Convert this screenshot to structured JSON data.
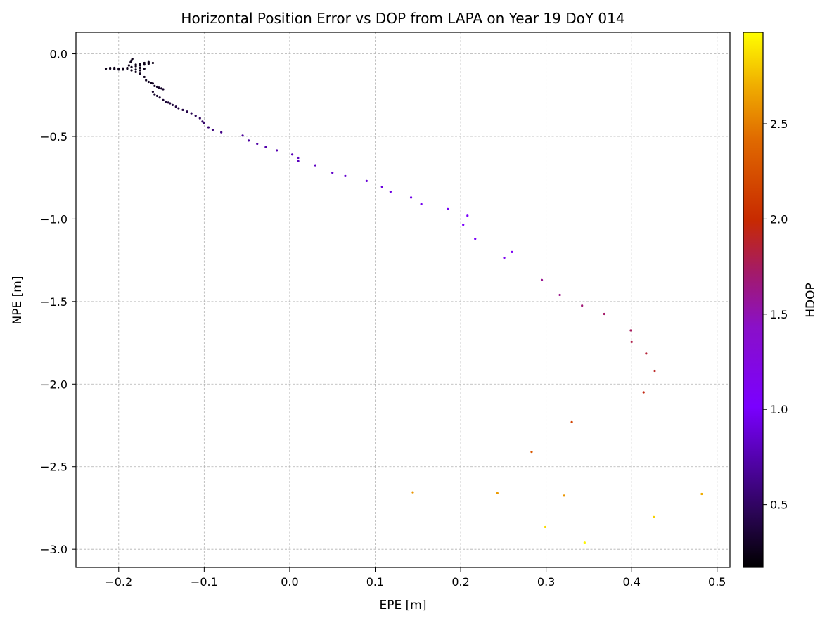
{
  "chart_data": {
    "type": "scatter",
    "title": "Horizontal Position Error vs DOP from LAPA on Year 19 DoY 014",
    "xlabel": "EPE [m]",
    "ylabel": "NPE [m]",
    "xlim": [
      -0.25,
      0.515
    ],
    "ylim": [
      -3.11,
      0.13
    ],
    "xticks": [
      -0.2,
      -0.1,
      0.0,
      0.1,
      0.2,
      0.3,
      0.4,
      0.5
    ],
    "xtick_labels": [
      "−0.2",
      "−0.1",
      "0.0",
      "0.1",
      "0.2",
      "0.3",
      "0.4",
      "0.5"
    ],
    "yticks": [
      0.0,
      -0.5,
      -1.0,
      -1.5,
      -2.0,
      -2.5,
      -3.0
    ],
    "ytick_labels": [
      "0.0",
      "−0.5",
      "−1.0",
      "−1.5",
      "−2.0",
      "−2.5",
      "−3.0"
    ],
    "grid": true,
    "colormap": "gnuplot",
    "colorbar": {
      "label": "HDOP",
      "range": [
        0.17,
        2.98
      ],
      "ticks": [
        0.5,
        1.0,
        1.5,
        2.0,
        2.5
      ],
      "tick_labels": [
        "0.5",
        "1.0",
        "1.5",
        "2.0",
        "2.5"
      ]
    },
    "points": [
      {
        "x": -0.215,
        "y": -0.09,
        "c": 0.25
      },
      {
        "x": -0.21,
        "y": -0.09,
        "c": 0.25
      },
      {
        "x": -0.205,
        "y": -0.092,
        "c": 0.25
      },
      {
        "x": -0.2,
        "y": -0.09,
        "c": 0.25
      },
      {
        "x": -0.195,
        "y": -0.088,
        "c": 0.25
      },
      {
        "x": -0.19,
        "y": -0.085,
        "c": 0.25
      },
      {
        "x": -0.185,
        "y": -0.08,
        "c": 0.25
      },
      {
        "x": -0.18,
        "y": -0.075,
        "c": 0.25
      },
      {
        "x": -0.175,
        "y": -0.07,
        "c": 0.25
      },
      {
        "x": -0.17,
        "y": -0.065,
        "c": 0.25
      },
      {
        "x": -0.165,
        "y": -0.06,
        "c": 0.25
      },
      {
        "x": -0.16,
        "y": -0.055,
        "c": 0.25
      },
      {
        "x": -0.165,
        "y": -0.05,
        "c": 0.25
      },
      {
        "x": -0.17,
        "y": -0.055,
        "c": 0.25
      },
      {
        "x": -0.175,
        "y": -0.06,
        "c": 0.25
      },
      {
        "x": -0.18,
        "y": -0.065,
        "c": 0.25
      },
      {
        "x": -0.185,
        "y": -0.04,
        "c": 0.25
      },
      {
        "x": -0.184,
        "y": -0.03,
        "c": 0.25
      },
      {
        "x": -0.186,
        "y": -0.05,
        "c": 0.25
      },
      {
        "x": -0.188,
        "y": -0.07,
        "c": 0.25
      },
      {
        "x": -0.19,
        "y": -0.09,
        "c": 0.25
      },
      {
        "x": -0.185,
        "y": -0.1,
        "c": 0.25
      },
      {
        "x": -0.18,
        "y": -0.095,
        "c": 0.25
      },
      {
        "x": -0.175,
        "y": -0.085,
        "c": 0.25
      },
      {
        "x": -0.17,
        "y": -0.09,
        "c": 0.25
      },
      {
        "x": -0.175,
        "y": -0.1,
        "c": 0.25
      },
      {
        "x": -0.18,
        "y": -0.11,
        "c": 0.25
      },
      {
        "x": -0.2,
        "y": -0.095,
        "c": 0.25
      },
      {
        "x": -0.21,
        "y": -0.085,
        "c": 0.25
      },
      {
        "x": -0.205,
        "y": -0.085,
        "c": 0.25
      },
      {
        "x": -0.195,
        "y": -0.095,
        "c": 0.25
      },
      {
        "x": -0.175,
        "y": -0.12,
        "c": 0.27
      },
      {
        "x": -0.17,
        "y": -0.14,
        "c": 0.27
      },
      {
        "x": -0.168,
        "y": -0.16,
        "c": 0.28
      },
      {
        "x": -0.165,
        "y": -0.17,
        "c": 0.28
      },
      {
        "x": -0.162,
        "y": -0.175,
        "c": 0.28
      },
      {
        "x": -0.16,
        "y": -0.18,
        "c": 0.29
      },
      {
        "x": -0.158,
        "y": -0.195,
        "c": 0.29
      },
      {
        "x": -0.155,
        "y": -0.2,
        "c": 0.3
      },
      {
        "x": -0.153,
        "y": -0.205,
        "c": 0.3
      },
      {
        "x": -0.15,
        "y": -0.21,
        "c": 0.3
      },
      {
        "x": -0.148,
        "y": -0.215,
        "c": 0.31
      },
      {
        "x": -0.16,
        "y": -0.23,
        "c": 0.31
      },
      {
        "x": -0.158,
        "y": -0.245,
        "c": 0.32
      },
      {
        "x": -0.155,
        "y": -0.255,
        "c": 0.32
      },
      {
        "x": -0.152,
        "y": -0.265,
        "c": 0.33
      },
      {
        "x": -0.148,
        "y": -0.28,
        "c": 0.34
      },
      {
        "x": -0.145,
        "y": -0.29,
        "c": 0.35
      },
      {
        "x": -0.142,
        "y": -0.295,
        "c": 0.35
      },
      {
        "x": -0.14,
        "y": -0.3,
        "c": 0.36
      },
      {
        "x": -0.137,
        "y": -0.31,
        "c": 0.37
      },
      {
        "x": -0.133,
        "y": -0.32,
        "c": 0.38
      },
      {
        "x": -0.13,
        "y": -0.33,
        "c": 0.39
      },
      {
        "x": -0.125,
        "y": -0.34,
        "c": 0.4
      },
      {
        "x": -0.12,
        "y": -0.35,
        "c": 0.42
      },
      {
        "x": -0.115,
        "y": -0.36,
        "c": 0.44
      },
      {
        "x": -0.11,
        "y": -0.375,
        "c": 0.46
      },
      {
        "x": -0.105,
        "y": -0.39,
        "c": 0.48
      },
      {
        "x": -0.102,
        "y": -0.41,
        "c": 0.5
      },
      {
        "x": -0.1,
        "y": -0.42,
        "c": 0.52
      },
      {
        "x": -0.095,
        "y": -0.445,
        "c": 0.55
      },
      {
        "x": -0.09,
        "y": -0.46,
        "c": 0.58
      },
      {
        "x": -0.08,
        "y": -0.475,
        "c": 0.62
      },
      {
        "x": -0.055,
        "y": -0.495,
        "c": 0.68
      },
      {
        "x": -0.048,
        "y": -0.525,
        "c": 0.7
      },
      {
        "x": -0.038,
        "y": -0.545,
        "c": 0.72
      },
      {
        "x": -0.028,
        "y": -0.565,
        "c": 0.74
      },
      {
        "x": -0.015,
        "y": -0.585,
        "c": 0.76
      },
      {
        "x": 0.003,
        "y": -0.61,
        "c": 0.78
      },
      {
        "x": 0.01,
        "y": -0.63,
        "c": 0.8
      },
      {
        "x": 0.01,
        "y": -0.65,
        "c": 0.8
      },
      {
        "x": 0.03,
        "y": -0.675,
        "c": 0.82
      },
      {
        "x": 0.05,
        "y": -0.72,
        "c": 0.84
      },
      {
        "x": 0.065,
        "y": -0.74,
        "c": 0.86
      },
      {
        "x": 0.09,
        "y": -0.77,
        "c": 0.88
      },
      {
        "x": 0.108,
        "y": -0.805,
        "c": 0.9
      },
      {
        "x": 0.118,
        "y": -0.835,
        "c": 0.92
      },
      {
        "x": 0.142,
        "y": -0.87,
        "c": 0.94
      },
      {
        "x": 0.154,
        "y": -0.91,
        "c": 0.96
      },
      {
        "x": 0.185,
        "y": -0.94,
        "c": 0.98
      },
      {
        "x": 0.208,
        "y": -0.98,
        "c": 1.0
      },
      {
        "x": 0.203,
        "y": -1.035,
        "c": 1.02
      },
      {
        "x": 0.217,
        "y": -1.12,
        "c": 1.05
      },
      {
        "x": 0.26,
        "y": -1.2,
        "c": 1.1
      },
      {
        "x": 0.251,
        "y": -1.235,
        "c": 1.12
      },
      {
        "x": 0.295,
        "y": -1.37,
        "c": 1.6
      },
      {
        "x": 0.316,
        "y": -1.46,
        "c": 1.62
      },
      {
        "x": 0.342,
        "y": -1.525,
        "c": 1.68
      },
      {
        "x": 0.368,
        "y": -1.575,
        "c": 1.72
      },
      {
        "x": 0.399,
        "y": -1.675,
        "c": 1.75
      },
      {
        "x": 0.4,
        "y": -1.745,
        "c": 1.8
      },
      {
        "x": 0.417,
        "y": -1.815,
        "c": 1.85
      },
      {
        "x": 0.427,
        "y": -1.92,
        "c": 1.9
      },
      {
        "x": 0.414,
        "y": -2.05,
        "c": 1.95
      },
      {
        "x": 0.33,
        "y": -2.23,
        "c": 2.15
      },
      {
        "x": 0.283,
        "y": -2.41,
        "c": 2.3
      },
      {
        "x": 0.144,
        "y": -2.655,
        "c": 2.6
      },
      {
        "x": 0.243,
        "y": -2.66,
        "c": 2.62
      },
      {
        "x": 0.321,
        "y": -2.675,
        "c": 2.6
      },
      {
        "x": 0.482,
        "y": -2.665,
        "c": 2.7
      },
      {
        "x": 0.426,
        "y": -2.805,
        "c": 2.82
      },
      {
        "x": 0.299,
        "y": -2.865,
        "c": 2.85
      },
      {
        "x": 0.345,
        "y": -2.96,
        "c": 2.95
      }
    ]
  }
}
